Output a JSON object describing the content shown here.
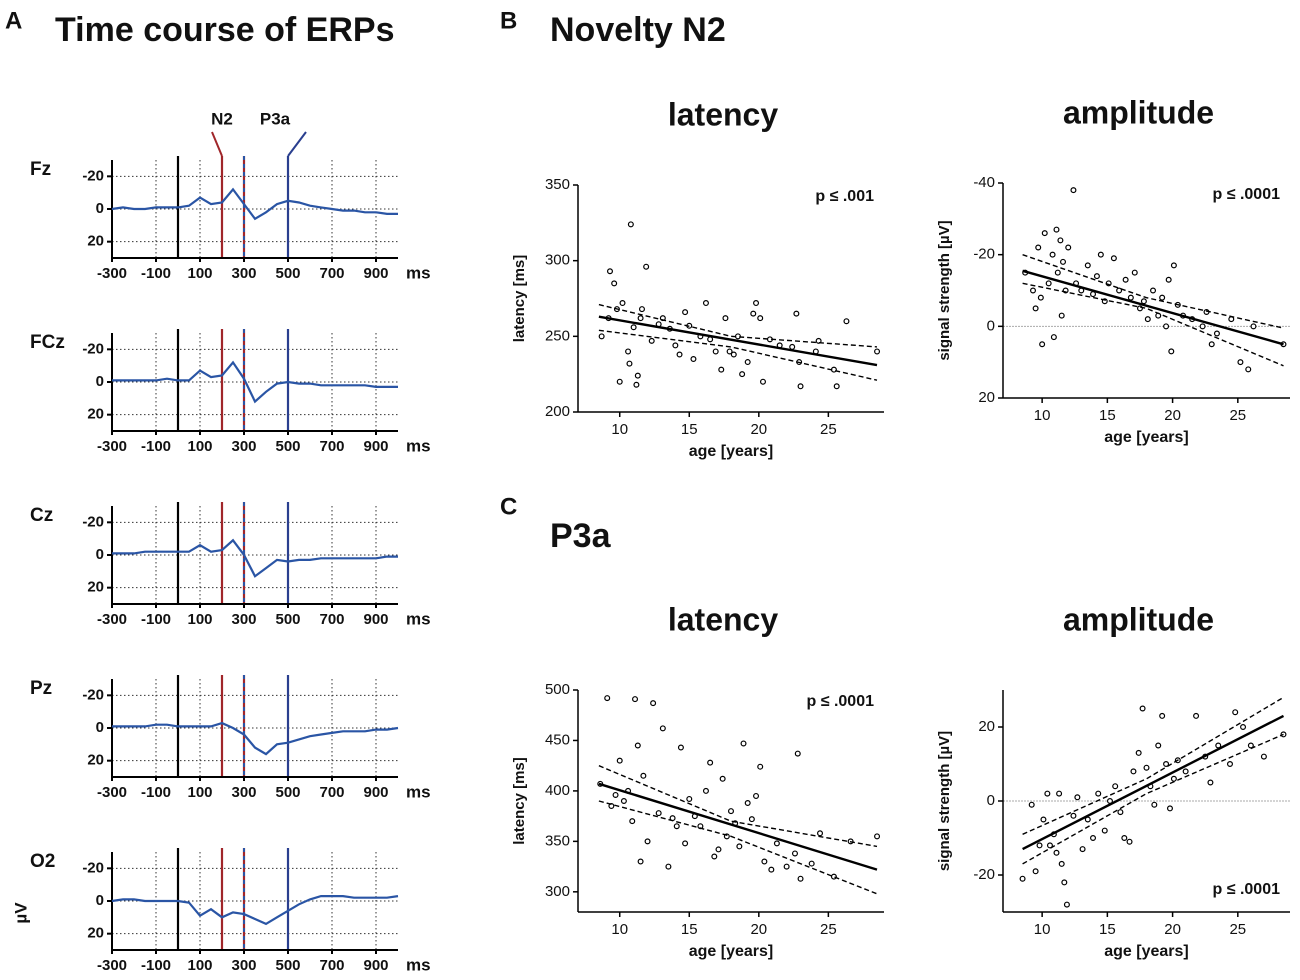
{
  "panels": [
    {
      "label": "A",
      "title": "Time course of ERPs"
    },
    {
      "label": "B",
      "title": "Novelty N2"
    },
    {
      "label": "C",
      "title": "P3a"
    }
  ],
  "chart_data": [
    {
      "type": "line",
      "title": "Fz",
      "xlim": [
        -300,
        1000
      ],
      "xticks": [
        -300,
        -100,
        100,
        300,
        500,
        700,
        900
      ],
      "x_unit": "ms",
      "ylim": [
        30,
        -30
      ],
      "yticks": [
        -20,
        0,
        20
      ],
      "grid": true,
      "color": "#2a55a5",
      "x": [
        -300,
        -250,
        -200,
        -150,
        -100,
        -50,
        0,
        50,
        100,
        150,
        200,
        250,
        300,
        350,
        400,
        450,
        500,
        550,
        600,
        650,
        700,
        750,
        800,
        850,
        900,
        950,
        1000
      ],
      "values": [
        0,
        -1,
        0,
        0,
        -1,
        -1,
        -1,
        -2,
        -7,
        -3,
        -4,
        -12,
        -3,
        6,
        2,
        -3,
        -5,
        -4,
        -2,
        -1,
        0,
        1,
        1,
        2,
        2,
        3,
        3
      ],
      "event_lines": [
        {
          "x": 0,
          "color": "#000000"
        },
        {
          "x": 200,
          "color": "#a0262a"
        },
        {
          "x": 300,
          "color": "#a0262a",
          "dash_color": "#2a55a5"
        },
        {
          "x": 500,
          "color": "#2a3f8f"
        }
      ],
      "annotations": [
        {
          "text": "N2",
          "x": 200,
          "color": "#a0262a"
        },
        {
          "text": "P3a",
          "x": 500,
          "color": "#2a3f8f"
        }
      ]
    },
    {
      "type": "line",
      "title": "FCz",
      "xlim": [
        -300,
        1000
      ],
      "xticks": [
        -300,
        -100,
        100,
        300,
        500,
        700,
        900
      ],
      "x_unit": "ms",
      "ylim": [
        30,
        -30
      ],
      "yticks": [
        -20,
        0,
        20
      ],
      "grid": true,
      "color": "#2a55a5",
      "x": [
        -300,
        -250,
        -200,
        -150,
        -100,
        -50,
        0,
        50,
        100,
        150,
        200,
        250,
        300,
        350,
        400,
        450,
        500,
        550,
        600,
        650,
        700,
        750,
        800,
        850,
        900,
        950,
        1000
      ],
      "values": [
        -1,
        -1,
        -1,
        -1,
        -1,
        -2,
        -1,
        -1,
        -7,
        -3,
        -4,
        -12,
        -2,
        12,
        6,
        1,
        0,
        1,
        1,
        2,
        2,
        2,
        2,
        2,
        3,
        3,
        3
      ],
      "event_lines": [
        {
          "x": 0,
          "color": "#000000"
        },
        {
          "x": 200,
          "color": "#a0262a"
        },
        {
          "x": 300,
          "color": "#a0262a",
          "dash_color": "#2a55a5"
        },
        {
          "x": 500,
          "color": "#2a3f8f"
        }
      ]
    },
    {
      "type": "line",
      "title": "Cz",
      "xlim": [
        -300,
        1000
      ],
      "xticks": [
        -300,
        -100,
        100,
        300,
        500,
        700,
        900
      ],
      "x_unit": "ms",
      "ylim": [
        30,
        -30
      ],
      "yticks": [
        -20,
        0,
        20
      ],
      "grid": true,
      "color": "#2a55a5",
      "x": [
        -300,
        -250,
        -200,
        -150,
        -100,
        -50,
        0,
        50,
        100,
        150,
        200,
        250,
        300,
        350,
        400,
        450,
        500,
        550,
        600,
        650,
        700,
        750,
        800,
        850,
        900,
        950,
        1000
      ],
      "values": [
        -1,
        -1,
        -1,
        -2,
        -2,
        -2,
        -2,
        -2,
        -6,
        -2,
        -3,
        -9,
        0,
        13,
        8,
        3,
        4,
        3,
        3,
        2,
        2,
        2,
        2,
        2,
        2,
        1,
        1
      ],
      "event_lines": [
        {
          "x": 0,
          "color": "#000000"
        },
        {
          "x": 200,
          "color": "#a0262a"
        },
        {
          "x": 300,
          "color": "#a0262a",
          "dash_color": "#2a55a5"
        },
        {
          "x": 500,
          "color": "#2a3f8f"
        }
      ]
    },
    {
      "type": "line",
      "title": "Pz",
      "xlim": [
        -300,
        1000
      ],
      "xticks": [
        -300,
        -100,
        100,
        300,
        500,
        700,
        900
      ],
      "x_unit": "ms",
      "ylim": [
        30,
        -30
      ],
      "yticks": [
        -20,
        0,
        20
      ],
      "grid": true,
      "color": "#2a55a5",
      "x": [
        -300,
        -250,
        -200,
        -150,
        -100,
        -50,
        0,
        50,
        100,
        150,
        200,
        250,
        300,
        350,
        400,
        450,
        500,
        550,
        600,
        650,
        700,
        750,
        800,
        850,
        900,
        950,
        1000
      ],
      "values": [
        -1,
        -1,
        -1,
        -1,
        -2,
        -2,
        -1,
        -1,
        -1,
        -1,
        -3,
        0,
        4,
        12,
        16,
        10,
        9,
        7,
        5,
        4,
        3,
        2,
        2,
        2,
        1,
        1,
        0
      ],
      "event_lines": [
        {
          "x": 0,
          "color": "#000000"
        },
        {
          "x": 200,
          "color": "#a0262a"
        },
        {
          "x": 300,
          "color": "#a0262a",
          "dash_color": "#2a55a5"
        },
        {
          "x": 500,
          "color": "#2a3f8f"
        }
      ]
    },
    {
      "type": "line",
      "title": "O2",
      "ylabel": "µV",
      "xlim": [
        -300,
        1000
      ],
      "xticks": [
        -300,
        -100,
        100,
        300,
        500,
        700,
        900
      ],
      "x_unit": "ms",
      "ylim": [
        30,
        -30
      ],
      "yticks": [
        -20,
        0,
        20
      ],
      "grid": true,
      "color": "#2a55a5",
      "x": [
        -300,
        -250,
        -200,
        -150,
        -100,
        -50,
        0,
        50,
        100,
        150,
        200,
        250,
        300,
        350,
        400,
        450,
        500,
        550,
        600,
        650,
        700,
        750,
        800,
        850,
        900,
        950,
        1000
      ],
      "values": [
        0,
        -1,
        -1,
        0,
        0,
        0,
        0,
        1,
        9,
        5,
        10,
        7,
        8,
        11,
        14,
        10,
        6,
        2,
        -1,
        -3,
        -3,
        -3,
        -2,
        -2,
        -2,
        -2,
        -3
      ],
      "event_lines": [
        {
          "x": 0,
          "color": "#000000"
        },
        {
          "x": 200,
          "color": "#a0262a"
        },
        {
          "x": 300,
          "color": "#a0262a",
          "dash_color": "#2a55a5"
        },
        {
          "x": 500,
          "color": "#2a3f8f"
        }
      ]
    },
    {
      "type": "scatter",
      "title": "latency",
      "xlabel": "age [years]",
      "ylabel": "latency [ms]",
      "annotation": "p ≤ .001",
      "annotation_corner": "top-right",
      "xlim": [
        7,
        29
      ],
      "xticks": [
        10,
        15,
        20,
        25
      ],
      "ylim": [
        200,
        350
      ],
      "yticks": [
        200,
        250,
        300,
        350
      ],
      "x": [
        8.7,
        9.2,
        9.3,
        9.6,
        9.8,
        10.0,
        10.2,
        10.6,
        10.7,
        10.8,
        11.0,
        11.2,
        11.3,
        11.5,
        11.6,
        11.9,
        12.3,
        12.8,
        13.1,
        13.6,
        14.0,
        14.3,
        14.7,
        15.0,
        15.3,
        15.8,
        16.2,
        16.5,
        16.9,
        17.3,
        17.6,
        17.9,
        18.2,
        18.5,
        18.8,
        19.2,
        19.6,
        19.8,
        20.1,
        20.3,
        20.8,
        21.5,
        22.4,
        22.7,
        22.9,
        23.0,
        24.1,
        24.3,
        25.4,
        25.6,
        26.3,
        28.5
      ],
      "values": [
        250,
        262,
        293,
        285,
        268,
        220,
        272,
        240,
        232,
        324,
        256,
        218,
        224,
        262,
        268,
        296,
        247,
        258,
        262,
        255,
        244,
        238,
        266,
        257,
        235,
        250,
        272,
        248,
        240,
        228,
        262,
        240,
        238,
        250,
        225,
        233,
        265,
        272,
        262,
        220,
        248,
        244,
        243,
        265,
        233,
        217,
        240,
        247,
        228,
        217,
        260,
        240
      ],
      "fit": {
        "x": [
          8.5,
          28.5
        ],
        "values": [
          263,
          231
        ]
      },
      "ci_upper": {
        "x": [
          8.5,
          18,
          28.5
        ],
        "values": [
          271,
          250,
          243
        ]
      },
      "ci_lower": {
        "x": [
          8.5,
          18,
          28.5
        ],
        "values": [
          254,
          243,
          221
        ]
      }
    },
    {
      "type": "scatter",
      "title": "amplitude",
      "xlabel": "age [years]",
      "ylabel": "signal strength [µV]",
      "annotation": "p ≤ .0001",
      "annotation_corner": "top-right",
      "xlim": [
        7,
        29
      ],
      "xticks": [
        10,
        15,
        20,
        25
      ],
      "ylim": [
        20,
        -40
      ],
      "yticks": [
        -40,
        -20,
        0,
        20
      ],
      "reference_line": 0,
      "x": [
        8.7,
        9.3,
        9.5,
        9.7,
        9.9,
        10.0,
        10.2,
        10.5,
        10.8,
        10.9,
        11.1,
        11.2,
        11.4,
        11.5,
        11.6,
        11.8,
        12.0,
        12.4,
        12.6,
        13.0,
        13.5,
        13.9,
        14.2,
        14.5,
        14.8,
        15.1,
        15.5,
        15.9,
        16.4,
        16.8,
        17.1,
        17.5,
        17.8,
        18.1,
        18.5,
        18.9,
        19.2,
        19.5,
        19.7,
        19.9,
        20.1,
        20.4,
        20.8,
        21.5,
        22.3,
        22.6,
        23.0,
        23.4,
        24.5,
        25.2,
        25.8,
        26.2,
        28.5
      ],
      "values": [
        -15,
        -10,
        -5,
        -22,
        -8,
        5,
        -26,
        -12,
        -20,
        3,
        -27,
        -15,
        -24,
        -3,
        -18,
        -10,
        -22,
        -38,
        -12,
        -10,
        -17,
        -9,
        -14,
        -20,
        -7,
        -12,
        -19,
        -10,
        -13,
        -8,
        -15,
        -5,
        -7,
        -2,
        -10,
        -3,
        -8,
        0,
        -13,
        7,
        -17,
        -6,
        -3,
        -2,
        0,
        -4,
        5,
        2,
        -2,
        10,
        12,
        0,
        5
      ],
      "fit": {
        "x": [
          8.5,
          28.5
        ],
        "values": [
          -15.5,
          5
        ]
      },
      "ci_upper": {
        "x": [
          8.5,
          18,
          28.5
        ],
        "values": [
          -20,
          -8,
          0.5
        ]
      },
      "ci_lower": {
        "x": [
          8.5,
          18,
          28.5
        ],
        "values": [
          -12,
          -5,
          11
        ]
      }
    },
    {
      "type": "scatter",
      "title": "latency",
      "xlabel": "age [years]",
      "ylabel": "latency [ms]",
      "annotation": "p ≤ .0001",
      "annotation_corner": "top-right",
      "xlim": [
        7,
        29
      ],
      "xticks": [
        10,
        15,
        20,
        25
      ],
      "ylim": [
        280,
        500
      ],
      "yticks": [
        300,
        350,
        400,
        450,
        500
      ],
      "x": [
        8.6,
        9.1,
        9.4,
        9.7,
        10.0,
        10.3,
        10.6,
        10.9,
        11.1,
        11.3,
        11.5,
        11.7,
        12.0,
        12.4,
        12.8,
        13.1,
        13.5,
        13.8,
        14.1,
        14.4,
        14.7,
        15.0,
        15.4,
        15.8,
        16.2,
        16.5,
        16.8,
        17.1,
        17.4,
        17.7,
        18.0,
        18.3,
        18.6,
        18.9,
        19.2,
        19.5,
        19.8,
        20.1,
        20.4,
        20.9,
        21.3,
        22.0,
        22.6,
        22.8,
        23.0,
        23.8,
        24.4,
        25.4,
        26.6,
        28.5
      ],
      "values": [
        407,
        492,
        385,
        396,
        430,
        390,
        400,
        370,
        491,
        445,
        330,
        415,
        350,
        487,
        378,
        462,
        325,
        373,
        365,
        443,
        348,
        392,
        375,
        365,
        400,
        428,
        335,
        342,
        412,
        355,
        380,
        368,
        345,
        447,
        388,
        372,
        395,
        424,
        330,
        322,
        348,
        325,
        338,
        437,
        313,
        328,
        358,
        315,
        350,
        355
      ],
      "fit": {
        "x": [
          8.5,
          28.5
        ],
        "values": [
          407,
          322
        ]
      },
      "ci_upper": {
        "x": [
          8.5,
          18,
          28.5
        ],
        "values": [
          425,
          370,
          345
        ]
      },
      "ci_lower": {
        "x": [
          8.5,
          18,
          28.5
        ],
        "values": [
          390,
          355,
          298
        ]
      }
    },
    {
      "type": "scatter",
      "title": "amplitude",
      "xlabel": "age [years]",
      "ylabel": "signal strength [µV]",
      "annotation": "p ≤ .0001",
      "annotation_corner": "bottom-right",
      "xlim": [
        7,
        29
      ],
      "xticks": [
        10,
        15,
        20,
        25
      ],
      "ylim": [
        -30,
        30
      ],
      "yticks": [
        -20,
        0,
        20
      ],
      "reference_line": 0,
      "x": [
        8.5,
        9.2,
        9.5,
        9.8,
        10.1,
        10.4,
        10.6,
        10.9,
        11.1,
        11.3,
        11.5,
        11.7,
        11.9,
        12.4,
        12.7,
        13.1,
        13.5,
        13.9,
        14.3,
        14.8,
        15.2,
        15.6,
        16.0,
        16.3,
        16.7,
        17.0,
        17.4,
        17.7,
        18.0,
        18.3,
        18.6,
        18.9,
        19.2,
        19.5,
        19.8,
        20.1,
        20.4,
        21.0,
        21.8,
        22.5,
        22.9,
        23.5,
        24.4,
        24.8,
        25.4,
        26.0,
        27.0,
        28.5
      ],
      "values": [
        -21,
        -1,
        -19,
        -12,
        -5,
        2,
        -12,
        -9,
        -14,
        2,
        -17,
        -22,
        -28,
        -4,
        1,
        -13,
        -5,
        -10,
        2,
        -8,
        0,
        4,
        -3,
        -10,
        -11,
        8,
        13,
        25,
        9,
        4,
        -1,
        15,
        23,
        10,
        -2,
        6,
        11,
        8,
        23,
        12,
        5,
        15,
        10,
        24,
        20,
        15,
        12,
        18
      ],
      "fit": {
        "x": [
          8.5,
          28.5
        ],
        "values": [
          -13,
          23
        ]
      },
      "ci_upper": {
        "x": [
          8.5,
          18,
          28.5
        ],
        "values": [
          -9,
          6,
          28
        ]
      },
      "ci_lower": {
        "x": [
          8.5,
          18,
          28.5
        ],
        "values": [
          -17,
          2,
          18
        ]
      }
    }
  ]
}
